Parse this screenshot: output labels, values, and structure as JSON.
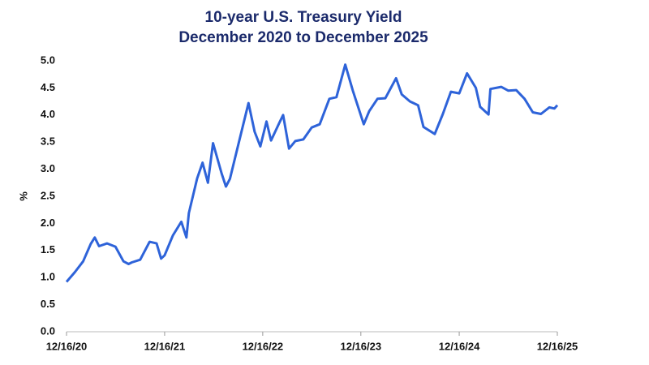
{
  "chart_data": {
    "type": "line",
    "title": "10-year U.S. Treasury Yield",
    "subtitle": "December 2020 to December 2025",
    "y_label": "%",
    "x": [
      "2020-12-16",
      "2021-01-16",
      "2021-02-16",
      "2021-03-16",
      "2021-03-31",
      "2021-04-16",
      "2021-05-16",
      "2021-06-16",
      "2021-07-16",
      "2021-08-04",
      "2021-08-16",
      "2021-09-16",
      "2021-10-21",
      "2021-11-16",
      "2021-12-03",
      "2021-12-16",
      "2022-01-16",
      "2022-02-16",
      "2022-03-07",
      "2022-03-16",
      "2022-04-16",
      "2022-05-06",
      "2022-05-26",
      "2022-06-14",
      "2022-07-16",
      "2022-08-01",
      "2022-08-16",
      "2022-09-16",
      "2022-10-24",
      "2022-11-16",
      "2022-12-07",
      "2022-12-30",
      "2023-01-16",
      "2023-02-16",
      "2023-03-02",
      "2023-03-24",
      "2023-04-16",
      "2023-05-16",
      "2023-06-16",
      "2023-07-16",
      "2023-08-21",
      "2023-09-16",
      "2023-10-19",
      "2023-11-16",
      "2023-12-27",
      "2024-01-16",
      "2024-02-16",
      "2024-03-16",
      "2024-04-25",
      "2024-05-16",
      "2024-06-16",
      "2024-07-16",
      "2024-08-05",
      "2024-09-16",
      "2024-10-16",
      "2024-11-15",
      "2024-12-16",
      "2025-01-14",
      "2025-02-16",
      "2025-03-04",
      "2025-04-04",
      "2025-04-11",
      "2025-05-21",
      "2025-06-16",
      "2025-07-16",
      "2025-08-16",
      "2025-09-16",
      "2025-10-16",
      "2025-11-16",
      "2025-12-05",
      "2025-12-16"
    ],
    "series": [
      {
        "name": "10-year U.S. Treasury Yield",
        "color": "#2e63d9",
        "values": [
          0.92,
          1.1,
          1.3,
          1.62,
          1.74,
          1.58,
          1.63,
          1.57,
          1.3,
          1.25,
          1.28,
          1.33,
          1.66,
          1.63,
          1.35,
          1.41,
          1.78,
          2.03,
          1.74,
          2.19,
          2.83,
          3.12,
          2.75,
          3.48,
          2.92,
          2.68,
          2.82,
          3.45,
          4.22,
          3.69,
          3.42,
          3.88,
          3.53,
          3.86,
          4.0,
          3.38,
          3.52,
          3.55,
          3.77,
          3.83,
          4.3,
          4.33,
          4.93,
          4.45,
          3.83,
          4.07,
          4.3,
          4.31,
          4.68,
          4.38,
          4.25,
          4.18,
          3.78,
          3.65,
          4.02,
          4.43,
          4.4,
          4.77,
          4.5,
          4.15,
          4.01,
          4.48,
          4.52,
          4.45,
          4.46,
          4.3,
          4.05,
          4.02,
          4.14,
          4.12,
          4.18
        ]
      }
    ],
    "xlim": [
      "2020-12-16",
      "2025-12-16"
    ],
    "xticks": [
      {
        "value": "2020-12-16",
        "label": "12/16/20"
      },
      {
        "value": "2021-12-16",
        "label": "12/16/21"
      },
      {
        "value": "2022-12-16",
        "label": "12/16/22"
      },
      {
        "value": "2023-12-16",
        "label": "12/16/23"
      },
      {
        "value": "2024-12-16",
        "label": "12/16/24"
      },
      {
        "value": "2025-12-16",
        "label": "12/16/25"
      }
    ],
    "ylim": [
      0,
      5
    ],
    "yticks": [
      {
        "value": 0,
        "label": "0.0"
      },
      {
        "value": 0.5,
        "label": "0.5"
      },
      {
        "value": 1,
        "label": "1.0"
      },
      {
        "value": 1.5,
        "label": "1.5"
      },
      {
        "value": 2,
        "label": "2.0"
      },
      {
        "value": 2.5,
        "label": "2.5"
      },
      {
        "value": 3,
        "label": "3.0"
      },
      {
        "value": 3.5,
        "label": "3.5"
      },
      {
        "value": 4,
        "label": "4.0"
      },
      {
        "value": 4.5,
        "label": "4.5"
      },
      {
        "value": 5,
        "label": "5.0"
      }
    ],
    "grid": false
  }
}
